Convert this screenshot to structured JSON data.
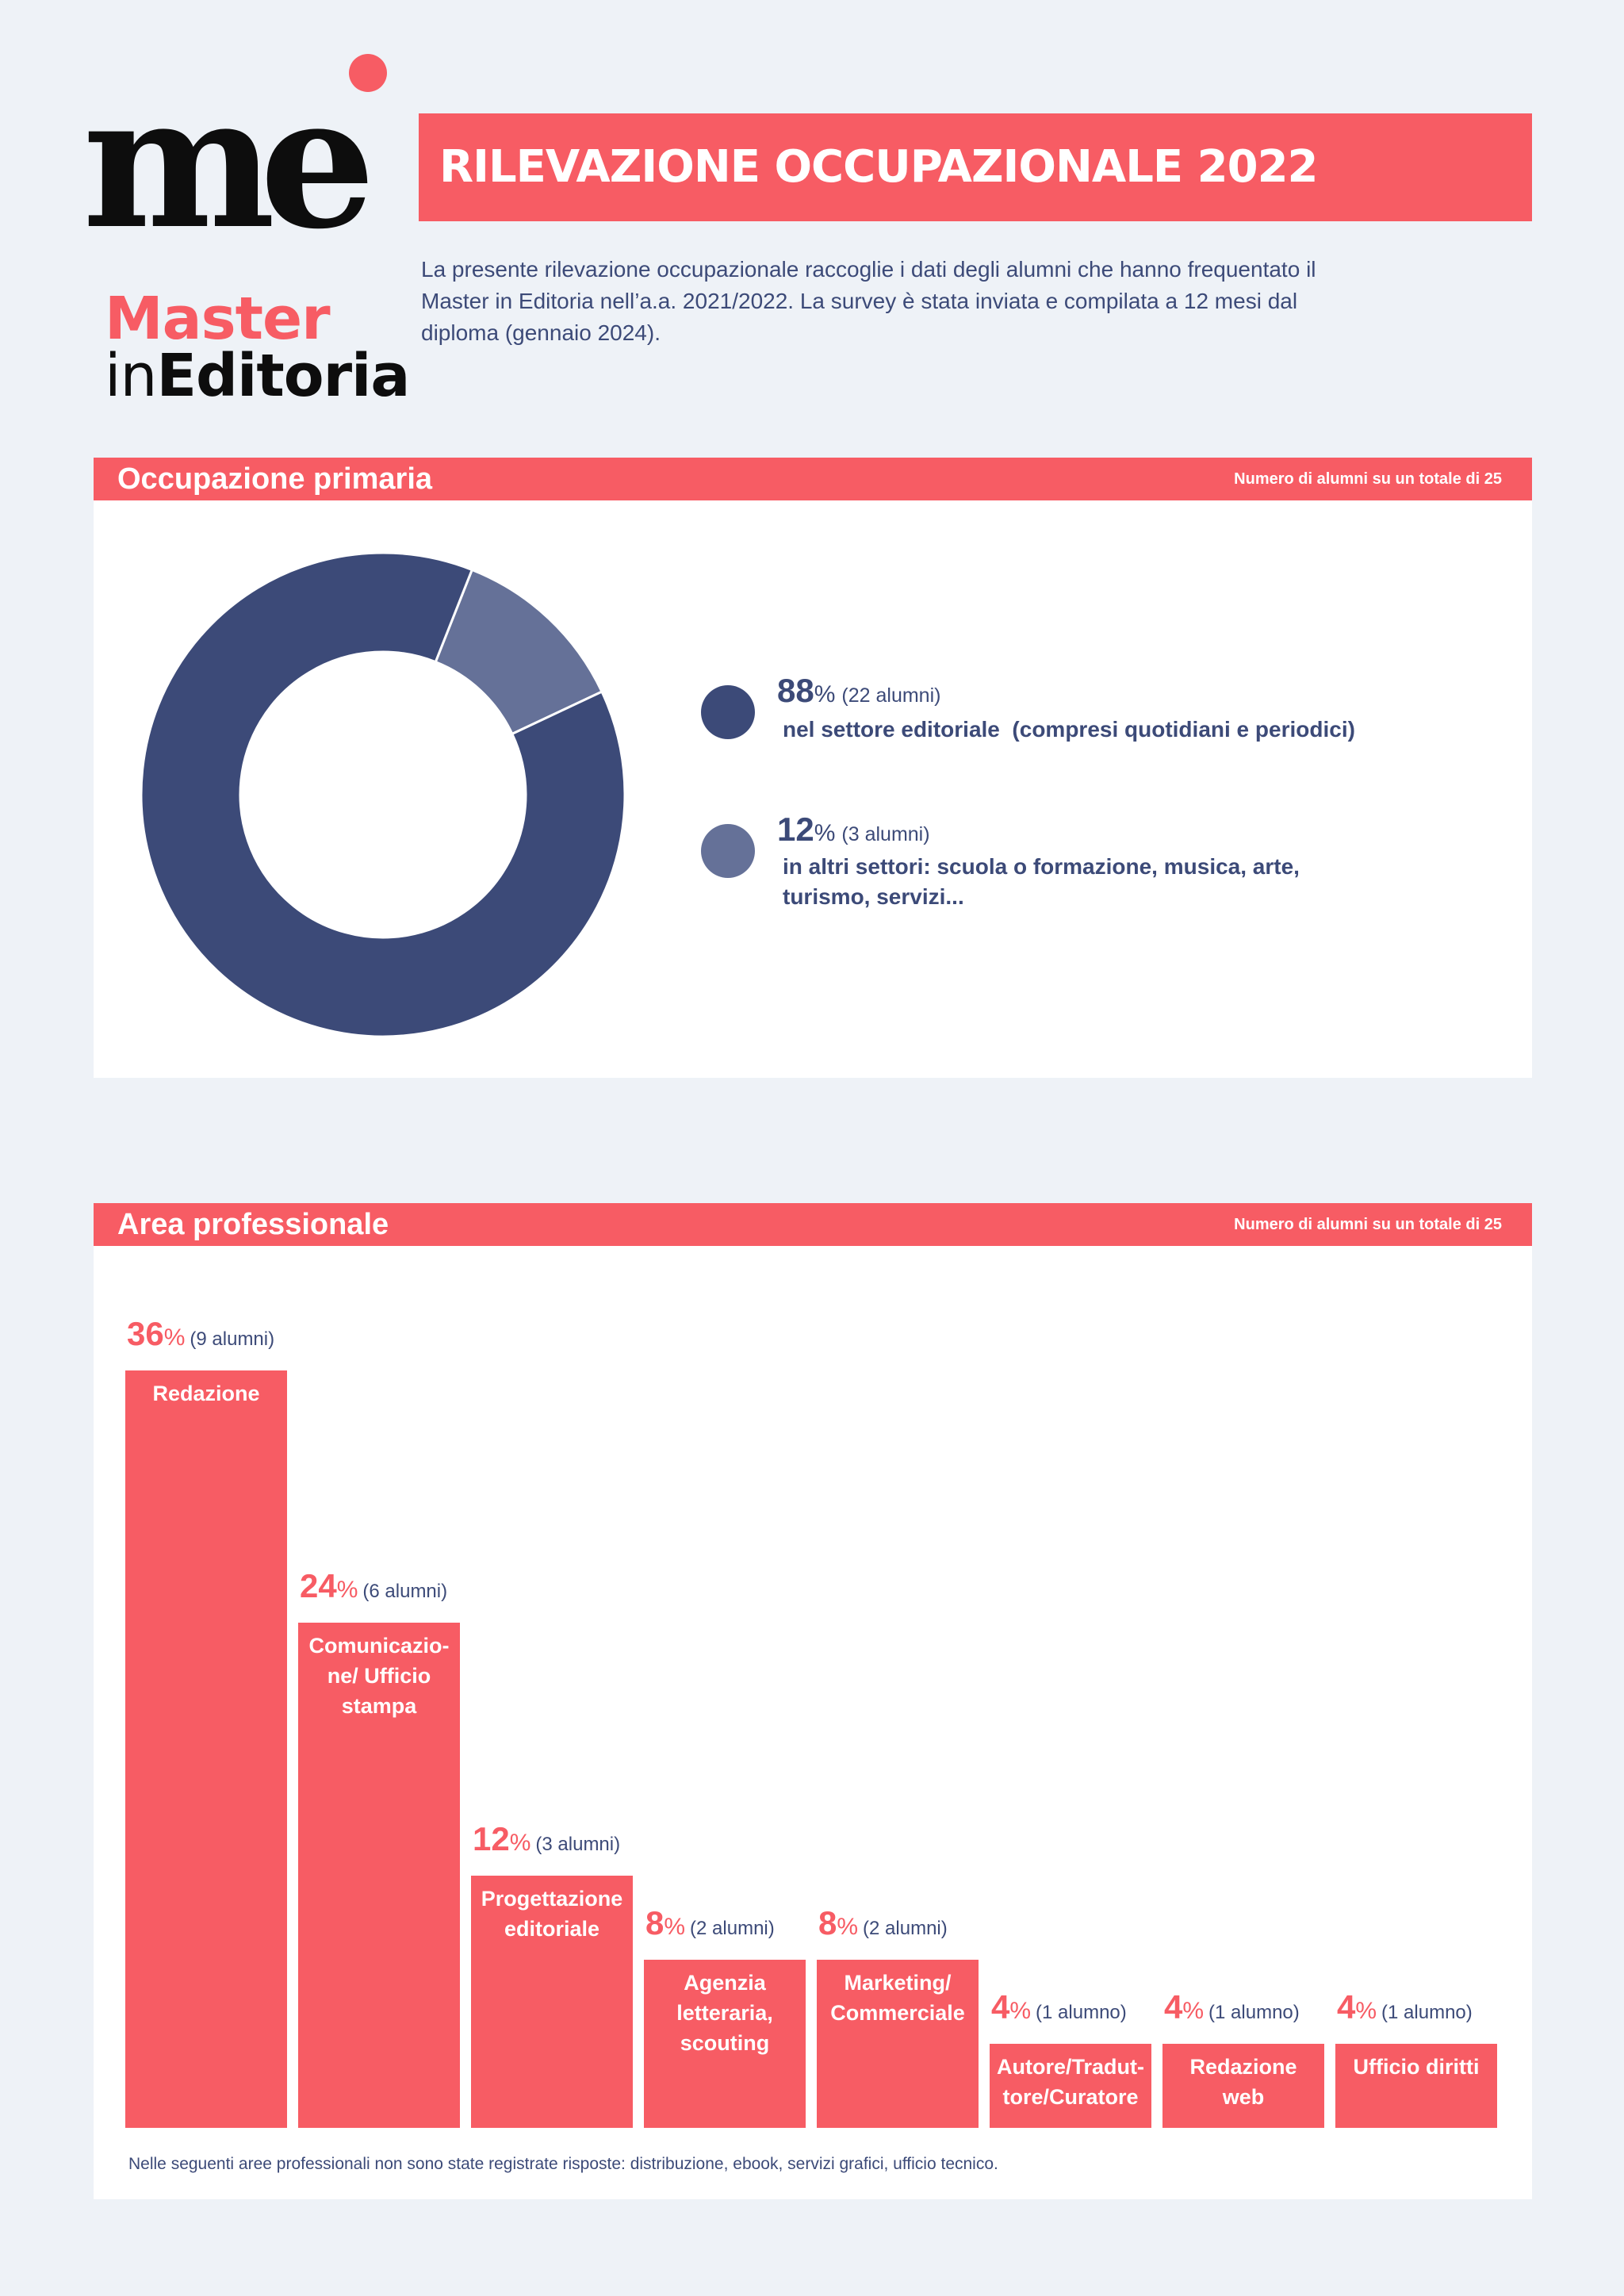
{
  "logo": {
    "mark": "me",
    "line1": "Master",
    "line2_prefix": "in",
    "line2_bold": "Editoria"
  },
  "header": {
    "title": "RILEVAZIONE OCCUPAZIONALE 2022",
    "intro": "La presente rilevazione occupazionale raccoglie i dati degli alumni che hanno frequentato il Master in Editoria nell’a.a. 2021/2022. La survey è stata inviata e compilata a 12 mesi dal diploma (gennaio 2024)."
  },
  "colors": {
    "accent": "#f75c64",
    "navy": "#3c4a78",
    "slate": "#657198",
    "background": "#eef2f7"
  },
  "chart_data": [
    {
      "type": "pie",
      "variant": "donut",
      "title": "Occupazione primaria",
      "note": "Numero di alumni su un totale di 25",
      "slices": [
        {
          "value": 88,
          "count_label": "(22 alumni)",
          "label": "nel settore editoriale  (compresi quotidiani e periodici)",
          "color": "#3c4a78"
        },
        {
          "value": 12,
          "count_label": "(3 alumni)",
          "label": "in altri settori: scuola o formazione, musica, arte, turismo, servizi...",
          "color": "#657198"
        }
      ]
    },
    {
      "type": "bar",
      "title": "Area professionale",
      "note": "Numero di alumni su un totale di 25",
      "ylim": [
        0,
        36
      ],
      "bars": [
        {
          "value": 36,
          "count_label": "(9 alumni)",
          "label": "Redazione"
        },
        {
          "value": 24,
          "count_label": "(6 alumni)",
          "label": "Comunicazio- ne/ Ufficio stampa"
        },
        {
          "value": 12,
          "count_label": "(3 alumni)",
          "label": "Progettazione editoriale"
        },
        {
          "value": 8,
          "count_label": "(2 alumni)",
          "label": "Agenzia letteraria, scouting"
        },
        {
          "value": 8,
          "count_label": "(2 alumni)",
          "label": "Marketing/ Commerciale"
        },
        {
          "value": 4,
          "count_label": "(1 alumno)",
          "label": "Autore/Tradut- tore/Curatore"
        },
        {
          "value": 4,
          "count_label": "(1 alumno)",
          "label": "Redazione web"
        },
        {
          "value": 4,
          "count_label": "(1 alumno)",
          "label": "Ufficio diritti"
        }
      ],
      "footnote": "Nelle seguenti aree professionali non sono state registrate risposte: distribuzione, ebook, servizi grafici, ufficio tecnico."
    }
  ]
}
